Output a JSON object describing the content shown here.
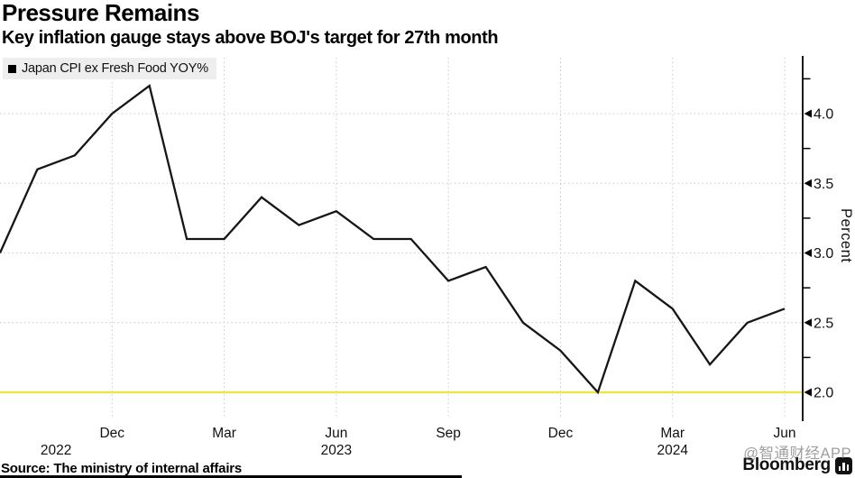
{
  "header": {
    "title": "Pressure Remains",
    "subtitle": "Key inflation gauge stays above BOJ's target for 27th month"
  },
  "legend": {
    "swatch_color": "#000000",
    "label": "Japan CPI ex Fresh Food YOY%"
  },
  "chart_data": {
    "type": "line",
    "title": "Pressure Remains",
    "subtitle": "Key inflation gauge stays above BOJ's target for 27th month",
    "ylabel": "Percent",
    "grid": "dotted",
    "legend_position": "top-left",
    "ylim": [
      1.79,
      4.41
    ],
    "x": [
      "2022-09",
      "2022-10",
      "2022-11",
      "2022-12",
      "2023-01",
      "2023-02",
      "2023-03",
      "2023-04",
      "2023-05",
      "2023-06",
      "2023-07",
      "2023-08",
      "2023-09",
      "2023-10",
      "2023-11",
      "2023-12",
      "2024-01",
      "2024-02",
      "2024-03",
      "2024-04",
      "2024-05",
      "2024-06"
    ],
    "series": [
      {
        "name": "Japan CPI ex Fresh Food YOY%",
        "color": "#161616",
        "values": [
          3.0,
          3.6,
          3.7,
          4.0,
          4.2,
          3.1,
          3.1,
          3.4,
          3.2,
          3.3,
          3.1,
          3.1,
          2.8,
          2.9,
          2.5,
          2.3,
          2.0,
          2.8,
          2.6,
          2.2,
          2.5,
          2.6
        ]
      }
    ],
    "target_line": {
      "value": 2.0,
      "color": "#f0e44c"
    },
    "y_ticks": [
      {
        "value": 2.0,
        "label": "2.0"
      },
      {
        "value": 2.5,
        "label": "2.5"
      },
      {
        "value": 3.0,
        "label": "3.0"
      },
      {
        "value": 3.5,
        "label": "3.5"
      },
      {
        "value": 4.0,
        "label": "4.0"
      }
    ],
    "y_minor_ticks": [
      2.25,
      2.75,
      3.25,
      3.75,
      4.25
    ],
    "x_ticks": [
      {
        "index": 3,
        "label": "Dec"
      },
      {
        "index": 6,
        "label": "Mar"
      },
      {
        "index": 9,
        "label": "Jun"
      },
      {
        "index": 12,
        "label": "Sep"
      },
      {
        "index": 15,
        "label": "Dec"
      },
      {
        "index": 18,
        "label": "Mar"
      },
      {
        "index": 21,
        "label": "Jun"
      }
    ],
    "year_labels": [
      {
        "index": 1.5,
        "label": "2022"
      },
      {
        "index": 9,
        "label": "2023"
      },
      {
        "index": 18,
        "label": "2024"
      }
    ]
  },
  "colors": {
    "line": "#161616",
    "target_yellow": "#f0e44c",
    "grid": "#c9c9c9",
    "legend_bg": "#eeeeee",
    "axis": "#000000"
  },
  "footer": {
    "source": "Source: The ministry of internal affairs",
    "brand": "Bloomberg",
    "brand_icon": "equalizer-icon"
  },
  "watermark": {
    "text": "@智通财经APP"
  }
}
